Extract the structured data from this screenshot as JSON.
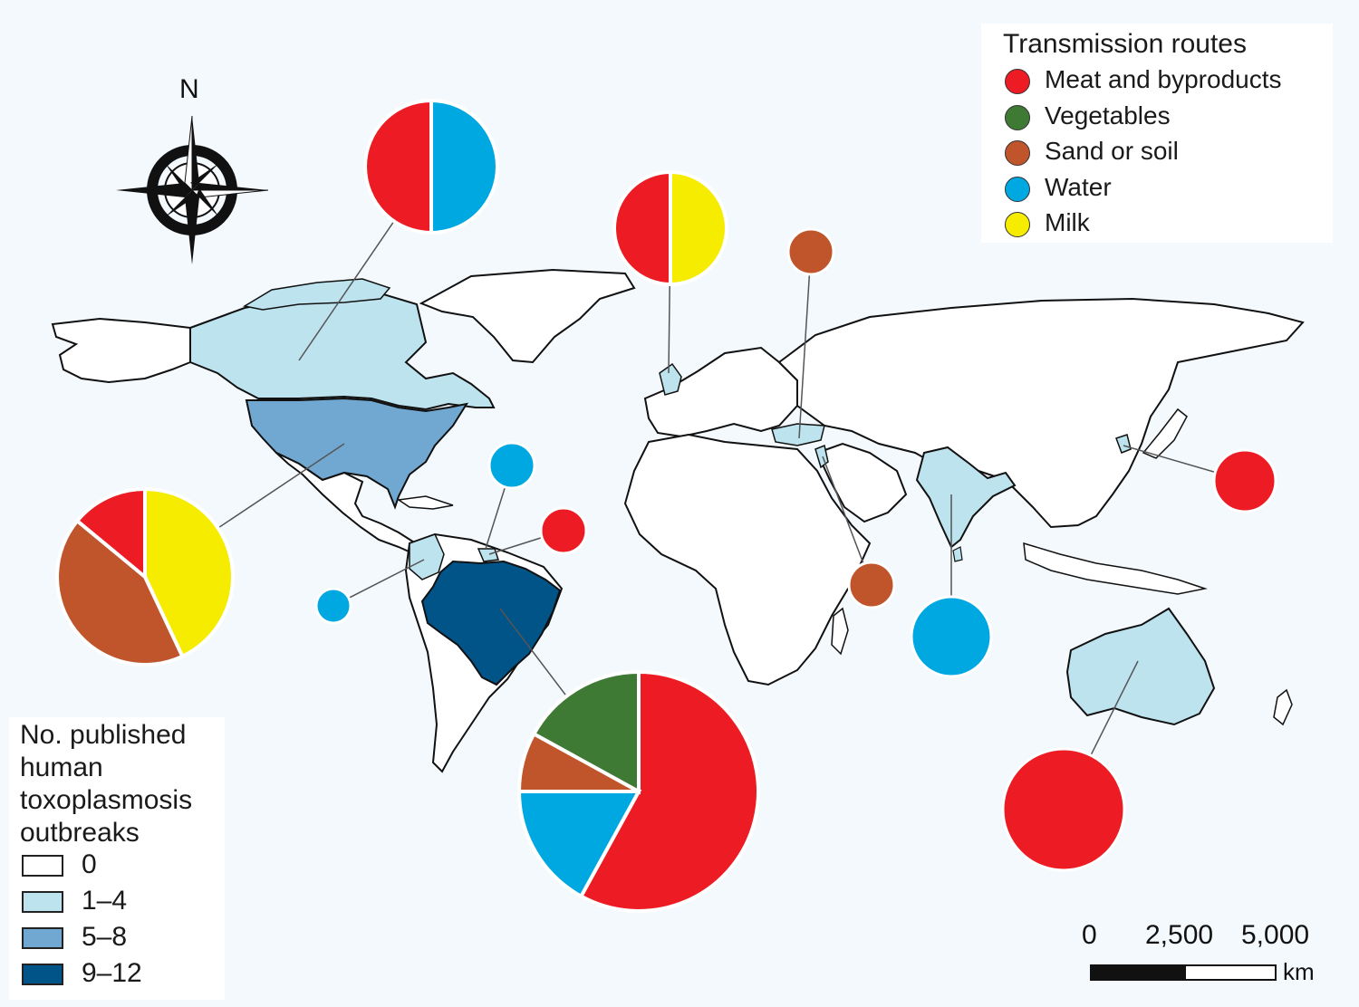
{
  "map": {
    "north_label": "N",
    "legend_routes": {
      "title": "Transmission routes",
      "items": [
        {
          "label": "Meat and byproducts",
          "color": "#ed1c24"
        },
        {
          "label": "Vegetables",
          "color": "#3f7a35"
        },
        {
          "label": "Sand or soil",
          "color": "#c0552b"
        },
        {
          "label": "Water",
          "color": "#00a8e1"
        },
        {
          "label": "Milk",
          "color": "#f6ec00"
        }
      ]
    },
    "legend_counts": {
      "title": "No. published human toxoplasmosis outbreaks",
      "items": [
        {
          "label": "0",
          "color": "#ffffff"
        },
        {
          "label": "1–4",
          "color": "#bde3ef"
        },
        {
          "label": "5–8",
          "color": "#70a8d2"
        },
        {
          "label": "9–12",
          "color": "#005488"
        }
      ]
    },
    "scale_bar": {
      "ticks": [
        "0",
        "2,500",
        "5,000"
      ],
      "unit": "km"
    },
    "region_fills": {
      "canada": "1–4",
      "united_states": "5–8",
      "brazil": "9–12",
      "colombia": "1–4",
      "french_guiana": "1–4",
      "united_kingdom": "1–4",
      "turkey": "1–4",
      "israel": "1–4",
      "india": "1–4",
      "south_korea": "1–4",
      "australia": "1–4"
    },
    "pies": [
      {
        "location": "Canada",
        "slices": [
          {
            "route": "Meat and byproducts",
            "share": 0.5
          },
          {
            "route": "Water",
            "share": 0.5
          }
        ]
      },
      {
        "location": "United Kingdom",
        "slices": [
          {
            "route": "Meat and byproducts",
            "share": 0.5
          },
          {
            "route": "Milk",
            "share": 0.5
          }
        ]
      },
      {
        "location": "Turkey",
        "slices": [
          {
            "route": "Sand or soil",
            "share": 1
          }
        ]
      },
      {
        "location": "United States",
        "slices": [
          {
            "route": "Milk",
            "share": 0.43
          },
          {
            "route": "Sand or soil",
            "share": 0.43
          },
          {
            "route": "Meat and byproducts",
            "share": 0.14
          }
        ]
      },
      {
        "location": "Colombia",
        "slices": [
          {
            "route": "Water",
            "share": 1
          }
        ]
      },
      {
        "location": "Panama",
        "slices": [
          {
            "route": "Water",
            "share": 1
          }
        ]
      },
      {
        "location": "French Guiana",
        "slices": [
          {
            "route": "Meat and byproducts",
            "share": 1
          }
        ]
      },
      {
        "location": "Brazil",
        "slices": [
          {
            "route": "Meat and byproducts",
            "share": 0.58
          },
          {
            "route": "Water",
            "share": 0.17
          },
          {
            "route": "Sand or soil",
            "share": 0.08
          },
          {
            "route": "Vegetables",
            "share": 0.17
          }
        ]
      },
      {
        "location": "Israel",
        "slices": [
          {
            "route": "Sand or soil",
            "share": 1
          }
        ]
      },
      {
        "location": "India",
        "slices": [
          {
            "route": "Water",
            "share": 1
          }
        ]
      },
      {
        "location": "South Korea",
        "slices": [
          {
            "route": "Meat and byproducts",
            "share": 1
          }
        ]
      },
      {
        "location": "Australia",
        "slices": [
          {
            "route": "Meat and byproducts",
            "share": 1
          }
        ]
      }
    ]
  }
}
